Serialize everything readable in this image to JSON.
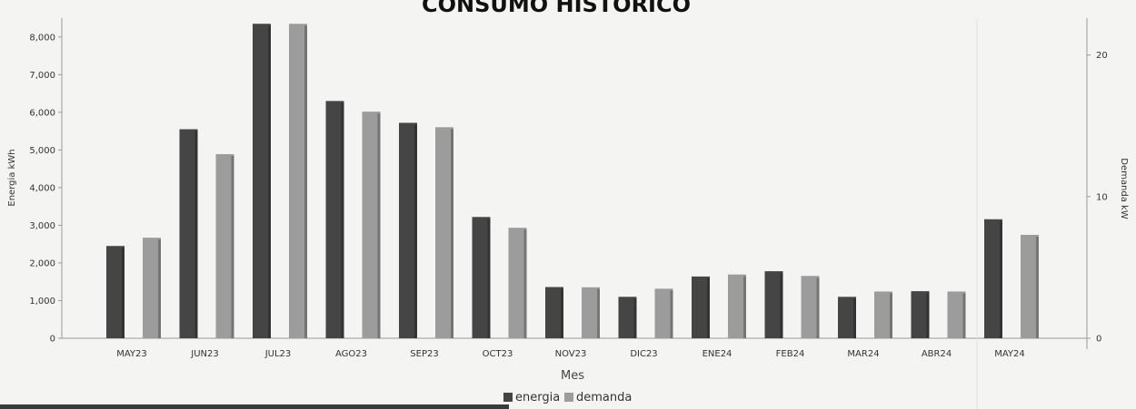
{
  "chart_data": {
    "type": "bar",
    "title": "CONSUMO HISTORICO",
    "xlabel": "Mes",
    "ylabel_left": "Energia kWh",
    "ylabel_right": "Demanda kW",
    "categories": [
      "MAY23",
      "JUN23",
      "JUL23",
      "AGO23",
      "SEP23",
      "OCT23",
      "NOV23",
      "DIC23",
      "ENE24",
      "FEB24",
      "MAR24",
      "ABR24",
      "MAY24"
    ],
    "ylim_left": [
      0,
      8500
    ],
    "yticks_left": [
      0,
      1000,
      2000,
      3000,
      4000,
      5000,
      6000,
      7000,
      8000
    ],
    "ytick_labels_left": [
      "0",
      "1,000",
      "2,000",
      "3,000",
      "4,000",
      "5,000",
      "6,000",
      "7,000",
      "8,000"
    ],
    "ylim_right": [
      0,
      22.6
    ],
    "yticks_right": [
      0,
      10,
      20
    ],
    "ytick_labels_right": [
      "0",
      "10",
      "20"
    ],
    "series": [
      {
        "name": "energia",
        "axis": "left",
        "color": "#454545",
        "values": [
          2450,
          5550,
          8350,
          6300,
          5720,
          3220,
          1360,
          1100,
          1640,
          1780,
          1100,
          1250,
          3160
        ]
      },
      {
        "name": "demanda",
        "axis": "right",
        "color": "#9c9c9c",
        "values": [
          7.1,
          13.0,
          22.2,
          16.0,
          14.9,
          7.8,
          3.6,
          3.5,
          4.5,
          4.4,
          3.3,
          3.3,
          7.3
        ]
      }
    ],
    "grid": false,
    "legend_position": "bottom"
  }
}
